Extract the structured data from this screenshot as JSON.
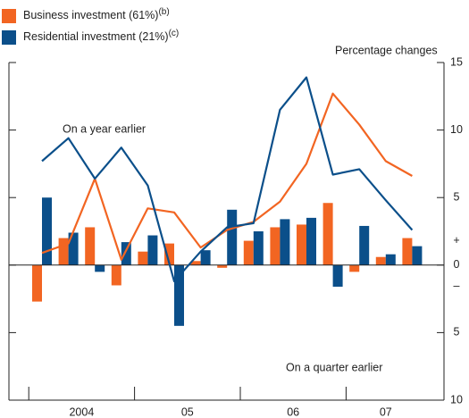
{
  "chart_data": {
    "type": "bar-line",
    "unit_label": "Percentage changes",
    "categories": [
      "2004",
      null,
      null,
      null,
      "05",
      null,
      null,
      null,
      "06",
      null,
      null,
      null,
      "07",
      null,
      null
    ],
    "series": [
      {
        "name": "Business investment (61%)",
        "note": "(b)",
        "color": "#f26522",
        "quarter_values": [
          -2.7,
          2.0,
          2.8,
          -1.5,
          1.0,
          1.6,
          0.3,
          -0.2,
          1.8,
          2.8,
          3.0,
          4.6,
          -0.5,
          0.6,
          2.0
        ],
        "year_values": [
          0.9,
          1.6,
          6.4,
          0.4,
          4.2,
          3.9,
          1.3,
          2.6,
          3.2,
          4.7,
          7.5,
          12.7,
          10.4,
          7.7,
          6.6
        ]
      },
      {
        "name": "Residential investment (21%)",
        "note": "(c)",
        "color": "#0b4f8a",
        "quarter_values": [
          5.0,
          2.4,
          -0.5,
          1.7,
          2.2,
          -4.5,
          1.1,
          4.1,
          2.5,
          3.4,
          3.5,
          -1.6,
          2.9,
          0.8,
          1.4
        ],
        "year_values": [
          7.7,
          9.4,
          6.4,
          8.7,
          5.9,
          -1.2,
          1.0,
          2.8,
          3.1,
          11.5,
          13.9,
          6.7,
          7.1,
          4.8,
          2.6
        ]
      }
    ],
    "annotations": [
      "On a year earlier",
      "On a quarter earlier"
    ],
    "signs": [
      "+",
      "–"
    ],
    "ylim": [
      -10,
      15
    ],
    "yticks": [
      {
        "value": -10,
        "label": "10"
      },
      {
        "value": -5,
        "label": "5"
      },
      0,
      5,
      10,
      15
    ]
  }
}
